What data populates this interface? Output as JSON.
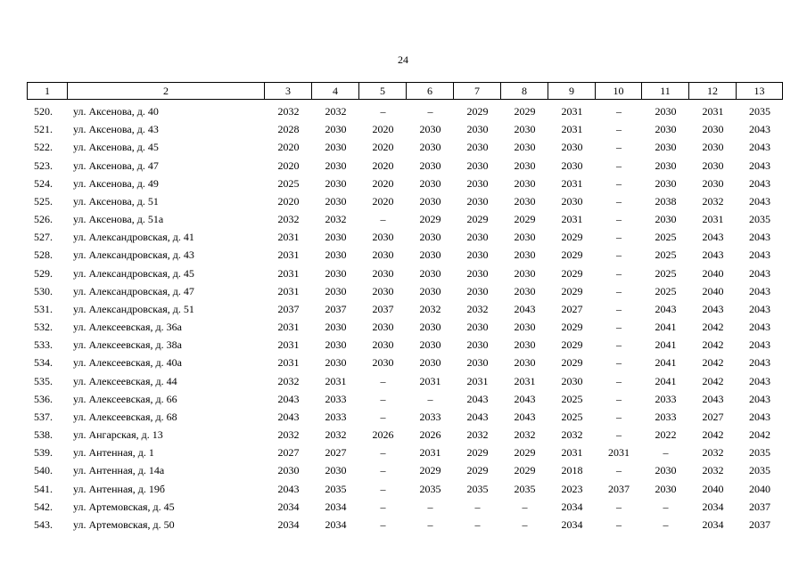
{
  "page_number": "24",
  "table": {
    "header": [
      "1",
      "2",
      "3",
      "4",
      "5",
      "6",
      "7",
      "8",
      "9",
      "10",
      "11",
      "12",
      "13"
    ],
    "rows": [
      [
        "520.",
        "ул. Аксенова, д. 40",
        "2032",
        "2032",
        "–",
        "–",
        "2029",
        "2029",
        "2031",
        "–",
        "2030",
        "2031",
        "2035"
      ],
      [
        "521.",
        "ул. Аксенова, д. 43",
        "2028",
        "2030",
        "2020",
        "2030",
        "2030",
        "2030",
        "2031",
        "–",
        "2030",
        "2030",
        "2043"
      ],
      [
        "522.",
        "ул. Аксенова, д. 45",
        "2020",
        "2030",
        "2020",
        "2030",
        "2030",
        "2030",
        "2030",
        "–",
        "2030",
        "2030",
        "2043"
      ],
      [
        "523.",
        "ул. Аксенова, д. 47",
        "2020",
        "2030",
        "2020",
        "2030",
        "2030",
        "2030",
        "2030",
        "–",
        "2030",
        "2030",
        "2043"
      ],
      [
        "524.",
        "ул. Аксенова, д. 49",
        "2025",
        "2030",
        "2020",
        "2030",
        "2030",
        "2030",
        "2031",
        "–",
        "2030",
        "2030",
        "2043"
      ],
      [
        "525.",
        "ул. Аксенова, д. 51",
        "2020",
        "2030",
        "2020",
        "2030",
        "2030",
        "2030",
        "2030",
        "–",
        "2038",
        "2032",
        "2043"
      ],
      [
        "526.",
        "ул. Аксенова, д. 51а",
        "2032",
        "2032",
        "–",
        "2029",
        "2029",
        "2029",
        "2031",
        "–",
        "2030",
        "2031",
        "2035"
      ],
      [
        "527.",
        "ул. Александровская, д. 41",
        "2031",
        "2030",
        "2030",
        "2030",
        "2030",
        "2030",
        "2029",
        "–",
        "2025",
        "2043",
        "2043"
      ],
      [
        "528.",
        "ул. Александровская, д. 43",
        "2031",
        "2030",
        "2030",
        "2030",
        "2030",
        "2030",
        "2029",
        "–",
        "2025",
        "2043",
        "2043"
      ],
      [
        "529.",
        "ул. Александровская, д. 45",
        "2031",
        "2030",
        "2030",
        "2030",
        "2030",
        "2030",
        "2029",
        "–",
        "2025",
        "2040",
        "2043"
      ],
      [
        "530.",
        "ул. Александровская, д. 47",
        "2031",
        "2030",
        "2030",
        "2030",
        "2030",
        "2030",
        "2029",
        "–",
        "2025",
        "2040",
        "2043"
      ],
      [
        "531.",
        "ул. Александровская, д. 51",
        "2037",
        "2037",
        "2037",
        "2032",
        "2032",
        "2043",
        "2027",
        "–",
        "2043",
        "2043",
        "2043"
      ],
      [
        "532.",
        "ул. Алексеевская, д. 36а",
        "2031",
        "2030",
        "2030",
        "2030",
        "2030",
        "2030",
        "2029",
        "–",
        "2041",
        "2042",
        "2043"
      ],
      [
        "533.",
        "ул. Алексеевская, д. 38а",
        "2031",
        "2030",
        "2030",
        "2030",
        "2030",
        "2030",
        "2029",
        "–",
        "2041",
        "2042",
        "2043"
      ],
      [
        "534.",
        "ул. Алексеевская, д. 40а",
        "2031",
        "2030",
        "2030",
        "2030",
        "2030",
        "2030",
        "2029",
        "–",
        "2041",
        "2042",
        "2043"
      ],
      [
        "535.",
        "ул. Алексеевская, д. 44",
        "2032",
        "2031",
        "–",
        "2031",
        "2031",
        "2031",
        "2030",
        "–",
        "2041",
        "2042",
        "2043"
      ],
      [
        "536.",
        "ул. Алексеевская, д. 66",
        "2043",
        "2033",
        "–",
        "–",
        "2043",
        "2043",
        "2025",
        "–",
        "2033",
        "2043",
        "2043"
      ],
      [
        "537.",
        "ул. Алексеевская, д. 68",
        "2043",
        "2033",
        "–",
        "2033",
        "2043",
        "2043",
        "2025",
        "–",
        "2033",
        "2027",
        "2043"
      ],
      [
        "538.",
        "ул. Ангарская, д. 13",
        "2032",
        "2032",
        "2026",
        "2026",
        "2032",
        "2032",
        "2032",
        "–",
        "2022",
        "2042",
        "2042"
      ],
      [
        "539.",
        "ул. Антенная, д. 1",
        "2027",
        "2027",
        "–",
        "2031",
        "2029",
        "2029",
        "2031",
        "2031",
        "–",
        "2032",
        "2035"
      ],
      [
        "540.",
        "ул. Антенная, д. 14а",
        "2030",
        "2030",
        "–",
        "2029",
        "2029",
        "2029",
        "2018",
        "–",
        "2030",
        "2032",
        "2035"
      ],
      [
        "541.",
        "ул. Антенная, д. 19б",
        "2043",
        "2035",
        "–",
        "2035",
        "2035",
        "2035",
        "2023",
        "2037",
        "2030",
        "2040",
        "2040"
      ],
      [
        "542.",
        "ул. Артемовская, д. 45",
        "2034",
        "2034",
        "–",
        "–",
        "–",
        "–",
        "2034",
        "–",
        "–",
        "2034",
        "2037"
      ],
      [
        "543.",
        "ул. Артемовская, д. 50",
        "2034",
        "2034",
        "–",
        "–",
        "–",
        "–",
        "2034",
        "–",
        "–",
        "2034",
        "2037"
      ]
    ]
  }
}
